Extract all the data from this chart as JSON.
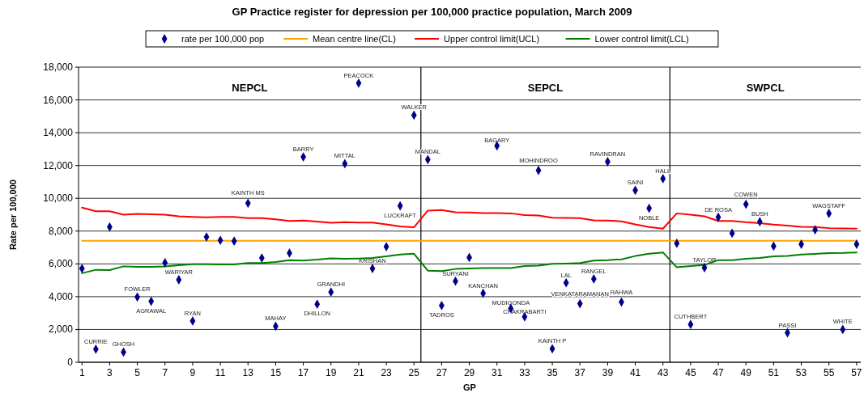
{
  "chart_data": {
    "type": "line",
    "title": "GP Practice register for depression per 100,000 practice population, March 2009",
    "xlabel": "GP",
    "ylabel": "Rate per 100,000",
    "x": [
      1,
      2,
      3,
      4,
      5,
      6,
      7,
      8,
      9,
      10,
      11,
      12,
      13,
      14,
      15,
      16,
      17,
      18,
      19,
      20,
      21,
      22,
      23,
      24,
      25,
      26,
      27,
      28,
      29,
      30,
      31,
      32,
      33,
      34,
      35,
      36,
      37,
      38,
      39,
      40,
      41,
      42,
      43,
      44,
      45,
      46,
      47,
      48,
      49,
      50,
      51,
      52,
      53,
      54,
      55,
      56,
      57
    ],
    "xlim": [
      0.75,
      57.3
    ],
    "xticks": [
      1,
      3,
      5,
      7,
      9,
      11,
      13,
      15,
      17,
      19,
      21,
      23,
      25,
      27,
      29,
      31,
      33,
      35,
      37,
      39,
      41,
      43,
      45,
      47,
      49,
      51,
      53,
      55,
      57
    ],
    "ylim": [
      0,
      18000
    ],
    "yticks": [
      {
        "value": 0,
        "label": "0"
      },
      {
        "value": 2000,
        "label": "2,000"
      },
      {
        "value": 4000,
        "label": "4,000"
      },
      {
        "value": 6000,
        "label": "6,000"
      },
      {
        "value": 8000,
        "label": "8,000"
      },
      {
        "value": 10000,
        "label": "10,000"
      },
      {
        "value": 12000,
        "label": "12,000"
      },
      {
        "value": 14000,
        "label": "14,000"
      },
      {
        "value": 16000,
        "label": "16,000"
      },
      {
        "value": 18000,
        "label": "18,000"
      }
    ],
    "grid": "y",
    "legend": "top",
    "series": [
      {
        "name": "rate per 100,000 pop",
        "type": "scatter",
        "marker": "diamond",
        "color": "#00008b",
        "values": [
          5720,
          800,
          8250,
          620,
          3980,
          3720,
          6070,
          5030,
          2520,
          7640,
          7440,
          7390,
          9700,
          6360,
          2200,
          6660,
          12520,
          3540,
          4280,
          12110,
          17020,
          5720,
          7050,
          9540,
          15070,
          12360,
          3460,
          4950,
          6390,
          4210,
          13200,
          3280,
          2770,
          11700,
          820,
          4850,
          3570,
          5080,
          12230,
          3670,
          10490,
          9390,
          11200,
          7250,
          2310,
          5770,
          8850,
          7870,
          9640,
          8570,
          7080,
          1800,
          7200,
          8080,
          9080,
          2000,
          7200
        ]
      },
      {
        "name": "Mean centre line(CL)",
        "color": "#ffa500",
        "values": [
          7410,
          7410,
          7410,
          7410,
          7410,
          7410,
          7410,
          7410,
          7410,
          7410,
          7410,
          7410,
          7410,
          7410,
          7410,
          7410,
          7410,
          7410,
          7410,
          7410,
          7410,
          7410,
          7410,
          7410,
          7410,
          7410,
          7410,
          7410,
          7410,
          7410,
          7410,
          7410,
          7410,
          7410,
          7410,
          7410,
          7410,
          7410,
          7410,
          7410,
          7410,
          7410,
          7410,
          7410,
          7410,
          7410,
          7410,
          7410,
          7410,
          7410,
          7410,
          7410,
          7410,
          7410,
          7410,
          7410,
          7410
        ]
      },
      {
        "name": "Upper control limit(UCL)",
        "color": "#ff0000",
        "values": [
          9430,
          9210,
          9210,
          9000,
          9050,
          9030,
          9000,
          8900,
          8870,
          8840,
          8870,
          8870,
          8790,
          8790,
          8720,
          8620,
          8640,
          8580,
          8510,
          8540,
          8520,
          8520,
          8410,
          8280,
          8230,
          9250,
          9280,
          9150,
          9130,
          9100,
          9100,
          9080,
          8980,
          8950,
          8820,
          8800,
          8790,
          8660,
          8640,
          8590,
          8410,
          8250,
          8150,
          9080,
          9000,
          8900,
          8620,
          8620,
          8540,
          8480,
          8390,
          8340,
          8260,
          8250,
          8180,
          8160,
          8150
        ]
      },
      {
        "name": "Lower control limit(LCL)",
        "color": "#008000",
        "values": [
          5430,
          5640,
          5620,
          5850,
          5820,
          5820,
          5840,
          5920,
          5980,
          5980,
          5970,
          5970,
          6050,
          6050,
          6110,
          6230,
          6200,
          6260,
          6340,
          6310,
          6330,
          6360,
          6460,
          6570,
          6620,
          5590,
          5560,
          5690,
          5720,
          5740,
          5740,
          5740,
          5870,
          5890,
          6000,
          6020,
          6050,
          6200,
          6230,
          6280,
          6480,
          6620,
          6700,
          5790,
          5870,
          5930,
          6230,
          6230,
          6310,
          6360,
          6460,
          6480,
          6570,
          6610,
          6660,
          6670,
          6700
        ]
      }
    ],
    "ref_lines": [
      {
        "axis": "x",
        "value": 25.5,
        "color": "#000000"
      },
      {
        "axis": "x",
        "value": 43.5,
        "color": "#000000"
      }
    ],
    "annotations": [
      "NEPCL",
      "SEPCL",
      "SWPCL",
      {
        "text": "CURRIE",
        "x": 2,
        "y": 800
      },
      {
        "text": "GHOSH",
        "x": 4,
        "y": 620
      },
      {
        "text": "FOWLER",
        "x": 5,
        "y": 3980
      },
      {
        "text": "AGRAWAL",
        "x": 6,
        "y": 3720
      },
      {
        "text": "WARIYAR",
        "x": 8,
        "y": 5030
      },
      {
        "text": "RYAN",
        "x": 9,
        "y": 2520
      },
      {
        "text": "KAINTH MS",
        "x": 13,
        "y": 9700
      },
      {
        "text": "MAHAY",
        "x": 15,
        "y": 2200
      },
      {
        "text": "BARRY",
        "x": 17,
        "y": 12520
      },
      {
        "text": "DHILLON",
        "x": 18,
        "y": 3540
      },
      {
        "text": "GRANDHI",
        "x": 19,
        "y": 4280
      },
      {
        "text": "MITTAL",
        "x": 20,
        "y": 12110
      },
      {
        "text": "PEACOCK",
        "x": 21,
        "y": 17020
      },
      {
        "text": "KRISHAN",
        "x": 22,
        "y": 5720
      },
      {
        "text": "LUCKRAFT",
        "x": 24,
        "y": 9540
      },
      {
        "text": "WALKER",
        "x": 25,
        "y": 15070
      },
      {
        "text": "MANDAL",
        "x": 26,
        "y": 12360
      },
      {
        "text": "TADROS",
        "x": 27,
        "y": 3460
      },
      {
        "text": "SURYANI",
        "x": 28,
        "y": 4950
      },
      {
        "text": "KANCHAN",
        "x": 30,
        "y": 4210
      },
      {
        "text": "BAGARY",
        "x": 31,
        "y": 13200
      },
      {
        "text": "MUDIGONDA",
        "x": 32,
        "y": 3280
      },
      {
        "text": "CHAKRABARTI",
        "x": 33,
        "y": 2770
      },
      {
        "text": "MOHINDROO",
        "x": 34,
        "y": 11700
      },
      {
        "text": "KAINTH P",
        "x": 35,
        "y": 820
      },
      {
        "text": "LAL",
        "x": 36,
        "y": 4850
      },
      {
        "text": "VENKATARAMANAN",
        "x": 37,
        "y": 3570
      },
      {
        "text": "RANGEL",
        "x": 38,
        "y": 5080
      },
      {
        "text": "RAVINDRAN",
        "x": 39,
        "y": 12230
      },
      {
        "text": "RAHWA",
        "x": 40,
        "y": 3670
      },
      {
        "text": "SAINI",
        "x": 41,
        "y": 10490
      },
      {
        "text": "NOBLE",
        "x": 42,
        "y": 9390
      },
      {
        "text": "HALL",
        "x": 43,
        "y": 11200
      },
      {
        "text": "CUTHBERT",
        "x": 45,
        "y": 2310
      },
      {
        "text": "TAYLOR",
        "x": 46,
        "y": 5770
      },
      {
        "text": "DE ROSA",
        "x": 47,
        "y": 8850
      },
      {
        "text": "COWEN",
        "x": 49,
        "y": 9640
      },
      {
        "text": "BUSH",
        "x": 50,
        "y": 8570
      },
      {
        "text": "PASSI",
        "x": 52,
        "y": 1800
      },
      {
        "text": "WAGSTAFF",
        "x": 55,
        "y": 9080
      },
      {
        "text": "WHITE",
        "x": 56,
        "y": 2000
      }
    ]
  }
}
